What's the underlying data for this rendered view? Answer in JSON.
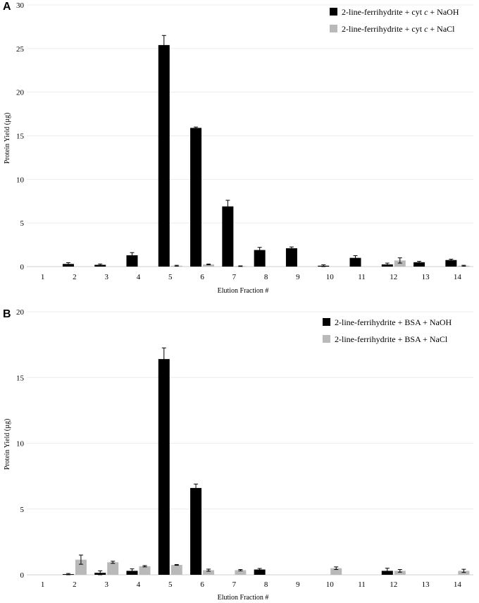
{
  "chart_data": [
    {
      "panel": "A",
      "type": "bar",
      "categories": [
        "1",
        "2",
        "3",
        "4",
        "5",
        "6",
        "7",
        "8",
        "9",
        "10",
        "11",
        "12",
        "13",
        "14"
      ],
      "series": [
        {
          "name": "2-line-ferrihydrite + cyt c + NaOH",
          "legend_prefix": "2-line-ferrihydrite + cyt ",
          "legend_italic": "c",
          "legend_suffix": " + NaOH",
          "color": "#000000",
          "values": [
            0,
            0.3,
            0.2,
            1.3,
            25.4,
            15.9,
            6.9,
            1.9,
            2.1,
            0.1,
            1.0,
            0.25,
            0.5,
            0.75
          ],
          "errors": [
            0,
            0.15,
            0.1,
            0.3,
            1.1,
            0.1,
            0.7,
            0.3,
            0.15,
            0.1,
            0.25,
            0.15,
            0.1,
            0.1
          ]
        },
        {
          "name": "2-line-ferrihydrite + cyt c + NaCl",
          "legend_prefix": "2-line-ferrihydrite + cyt ",
          "legend_italic": "c",
          "legend_suffix": " + NaCl",
          "color": "#b9b9b9",
          "values": [
            0,
            0,
            0,
            0,
            0.1,
            0.25,
            0.05,
            0,
            0,
            0,
            0,
            0.7,
            0,
            0.1
          ],
          "errors": [
            0,
            0,
            0,
            0,
            0.05,
            0.05,
            0.03,
            0,
            0,
            0,
            0,
            0.3,
            0,
            0.05
          ]
        }
      ],
      "xlabel": "Elution Fraction #",
      "ylabel": "Protein Yield (µg)",
      "ylim": [
        0,
        30
      ],
      "yticks": [
        0,
        5,
        10,
        15,
        20,
        25,
        30
      ],
      "grid": true,
      "legend": "top-right"
    },
    {
      "panel": "B",
      "type": "bar",
      "categories": [
        "1",
        "2",
        "3",
        "4",
        "5",
        "6",
        "7",
        "8",
        "9",
        "10",
        "11",
        "12",
        "13",
        "14"
      ],
      "series": [
        {
          "name": "2-line-ferrihydrite + BSA + NaOH",
          "legend_prefix": "2-line-ferrihydrite + BSA + NaOH",
          "legend_italic": "",
          "legend_suffix": "",
          "color": "#000000",
          "values": [
            0,
            0.05,
            0.15,
            0.3,
            16.4,
            6.6,
            0,
            0.4,
            0,
            0,
            0,
            0.3,
            0,
            0
          ],
          "errors": [
            0,
            0.05,
            0.15,
            0.15,
            0.85,
            0.3,
            0,
            0.08,
            0,
            0,
            0,
            0.2,
            0,
            0
          ]
        },
        {
          "name": "2-line-ferrihydrite + BSA + NaCl",
          "legend_prefix": "2-line-ferrihydrite + BSA + NaCl",
          "legend_italic": "",
          "legend_suffix": "",
          "color": "#b9b9b9",
          "values": [
            0,
            1.15,
            0.95,
            0.65,
            0.75,
            0.35,
            0.35,
            0,
            0,
            0.5,
            0,
            0.3,
            0,
            0.3
          ],
          "errors": [
            0,
            0.35,
            0.08,
            0.05,
            0.03,
            0.08,
            0.05,
            0,
            0,
            0.1,
            0,
            0.1,
            0,
            0.12
          ]
        }
      ],
      "xlabel": "Elution Fraction #",
      "ylabel": "Protein Yield (µg)",
      "ylim": [
        0,
        20
      ],
      "yticks": [
        0,
        5,
        10,
        15,
        20
      ],
      "grid": true,
      "legend": "top-right"
    }
  ]
}
